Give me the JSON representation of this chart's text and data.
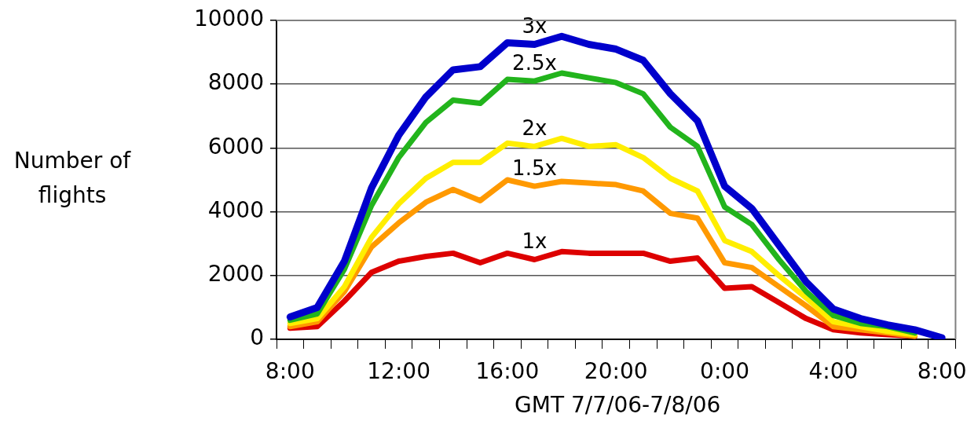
{
  "chart_data": {
    "type": "line",
    "xlabel": "GMT 7/7/06-7/8/06",
    "ylabel": "Number of flights",
    "categories": [
      "8:00",
      null,
      null,
      null,
      "12:00",
      null,
      null,
      null,
      "16:00",
      null,
      null,
      null,
      "20:00",
      null,
      null,
      null,
      "0:00",
      null,
      null,
      null,
      "4:00",
      null,
      null,
      null,
      "8:00"
    ],
    "ylim": [
      0,
      10000
    ],
    "yticks": [
      0,
      2000,
      4000,
      6000,
      8000,
      10000
    ],
    "grid": "y",
    "legend": false,
    "marker": "none",
    "line_style": "solid",
    "series": [
      {
        "name": "3x",
        "color": "#0000cc",
        "values": [
          700,
          1000,
          2450,
          4750,
          6400,
          7600,
          8450,
          8550,
          9300,
          9250,
          9500,
          9250,
          9100,
          8750,
          7700,
          6850,
          4800,
          4100,
          2950,
          1800,
          950,
          650,
          450,
          300,
          50
        ]
      },
      {
        "name": "2.5x",
        "color": "#22b41c",
        "values": [
          600,
          800,
          2200,
          4200,
          5700,
          6800,
          7500,
          7400,
          8150,
          8100,
          8350,
          8200,
          8050,
          7700,
          6650,
          6050,
          4150,
          3600,
          2500,
          1500,
          750,
          500,
          400,
          200,
          null
        ]
      },
      {
        "name": "2x",
        "color": "#ffee00",
        "values": [
          500,
          650,
          1650,
          3200,
          4250,
          5050,
          5550,
          5550,
          6150,
          6050,
          6300,
          6050,
          6100,
          5700,
          5050,
          4650,
          3100,
          2750,
          2000,
          1300,
          550,
          400,
          250,
          150,
          null
        ]
      },
      {
        "name": "1.5x",
        "color": "#ff9900",
        "values": [
          400,
          550,
          1500,
          2900,
          3650,
          4300,
          4700,
          4350,
          5000,
          4800,
          4950,
          4900,
          4850,
          4650,
          3950,
          3800,
          2400,
          2250,
          1650,
          1050,
          400,
          300,
          200,
          100,
          null
        ]
      },
      {
        "name": "1x",
        "color": "#dd0000",
        "values": [
          350,
          400,
          1200,
          2100,
          2450,
          2600,
          2700,
          2400,
          2700,
          2500,
          2750,
          2700,
          2700,
          2700,
          2450,
          2550,
          1600,
          1650,
          1150,
          650,
          300,
          200,
          150,
          100,
          null
        ]
      }
    ]
  }
}
